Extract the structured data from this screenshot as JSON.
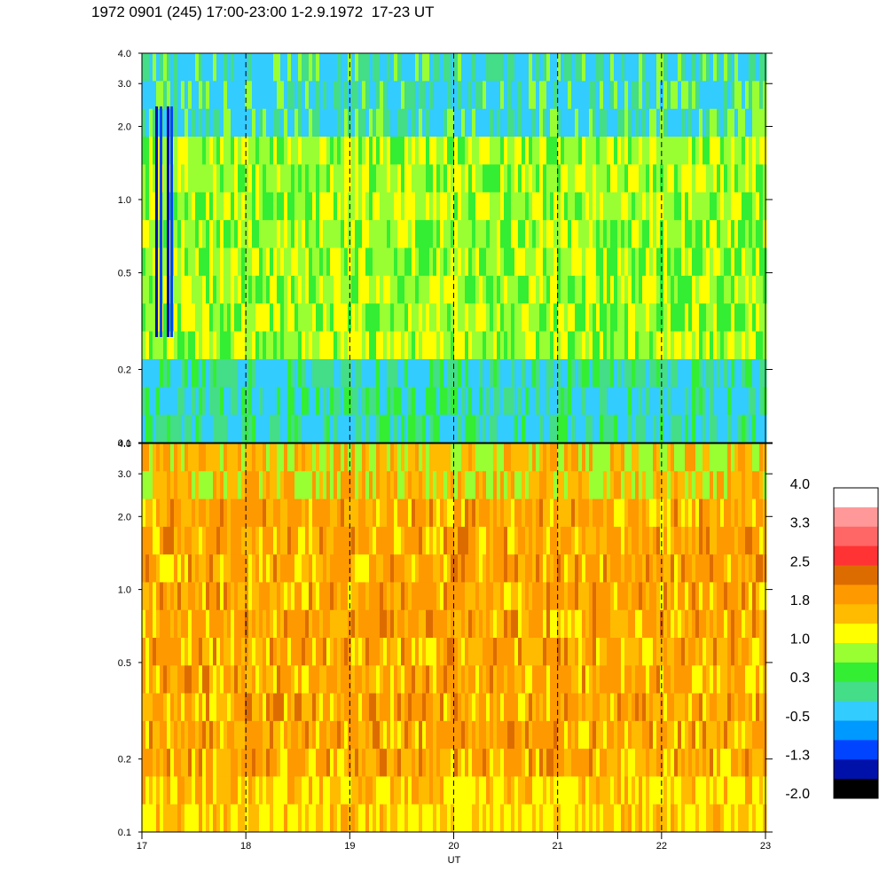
{
  "title": "1972 0901 (245) 17:00-23:00 1-2.9.1972  17-23 UT",
  "chart_data": [
    {
      "type": "heatmap",
      "panel": "top",
      "x_ticks": [
        "17",
        "18",
        "19",
        "20",
        "21",
        "22",
        "23"
      ],
      "xlim": [
        17,
        23
      ],
      "y_ticks": [
        "0.1",
        "0.2",
        "0.5",
        "1.0",
        "2.0",
        "3.0",
        "4.0"
      ],
      "ylim": [
        0.1,
        4.0
      ],
      "y_scale": "log",
      "dominant_values": "mostly -0.5 to 1.0 (cyan/green/yellow)",
      "vertical_dashed_lines_at": [
        18,
        19,
        20,
        21,
        22
      ]
    },
    {
      "type": "heatmap",
      "panel": "bottom",
      "x_ticks": [
        "17",
        "18",
        "19",
        "20",
        "21",
        "22",
        "23"
      ],
      "xlim": [
        17,
        23
      ],
      "y_ticks": [
        "0.1",
        "0.2",
        "0.5",
        "1.0",
        "2.0",
        "3.0",
        "4.0"
      ],
      "ylim": [
        0.1,
        4.0
      ],
      "y_scale": "log",
      "xlabel": "UT",
      "dominant_values": "mostly 1.0 to 2.5 (yellow/orange)",
      "vertical_dashed_lines_at": [
        18,
        19,
        20,
        21,
        22
      ]
    }
  ],
  "colorbar": {
    "labels": [
      "4.0",
      "3.3",
      "2.5",
      "1.8",
      "1.0",
      "0.3",
      "-0.5",
      "-1.3",
      "-2.0"
    ],
    "colors": [
      "#ffffff",
      "#ff9999",
      "#ff6666",
      "#ff3333",
      "#dd6c00",
      "#ff9900",
      "#ffbb00",
      "#ffff00",
      "#99ff33",
      "#33ee33",
      "#44dd88",
      "#33ccff",
      "#0099ff",
      "#0044ff",
      "#0011aa",
      "#000000"
    ]
  }
}
